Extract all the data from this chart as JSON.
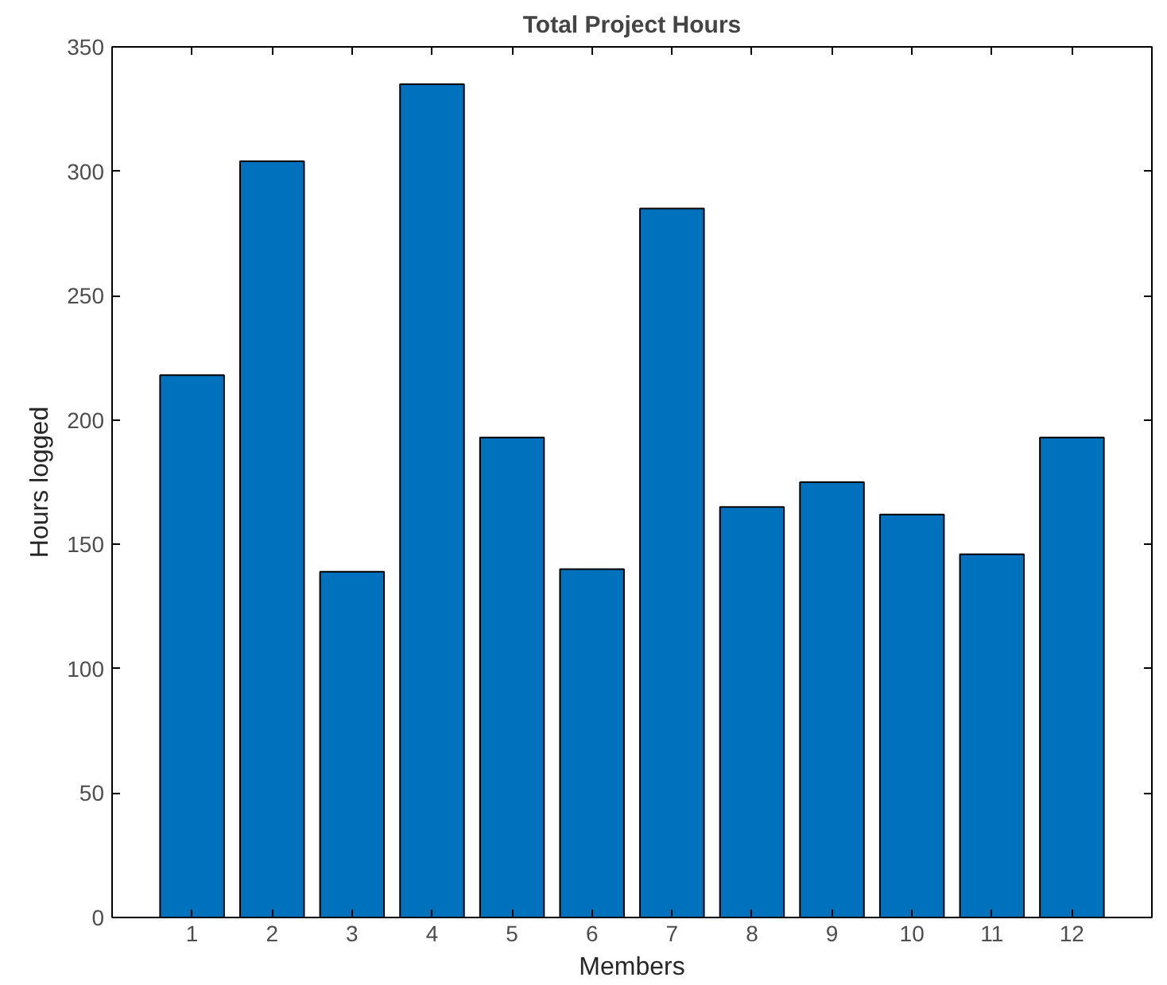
{
  "chart_data": {
    "type": "bar",
    "title": "Total Project Hours",
    "xlabel": "Members",
    "ylabel": "Hours logged",
    "x": [
      1,
      2,
      3,
      4,
      5,
      6,
      7,
      8,
      9,
      10,
      11,
      12
    ],
    "values": [
      218,
      304,
      139,
      335,
      193,
      140,
      285,
      165,
      175,
      162,
      146,
      193
    ],
    "color": "#0072bd",
    "xlim": [
      0,
      13
    ],
    "xticks": [
      1,
      2,
      3,
      4,
      5,
      6,
      7,
      8,
      9,
      10,
      11,
      12
    ],
    "ylim": [
      0,
      350
    ],
    "yticks": [
      0,
      50,
      100,
      150,
      200,
      250,
      300,
      350
    ],
    "grid": false
  }
}
